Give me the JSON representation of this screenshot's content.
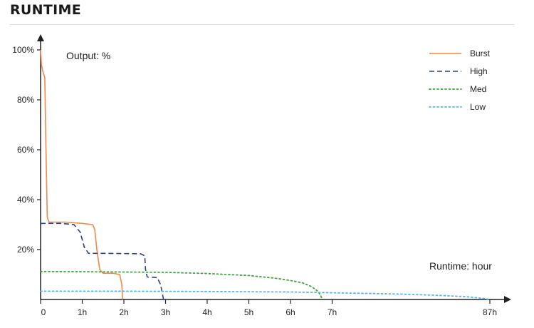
{
  "page_title": "RUNTIME",
  "chart_data": {
    "type": "line",
    "y_annotation": "Output: %",
    "x_annotation": "Runtime: hour",
    "y_ticks": [
      "20%",
      "40%",
      "60%",
      "80%",
      "100%"
    ],
    "y_tick_values": [
      20,
      40,
      60,
      80,
      100
    ],
    "x_ticks": [
      "0",
      "1h",
      "2h",
      "3h",
      "4h",
      "5h",
      "6h",
      "7h",
      "87h"
    ],
    "x_tick_values": [
      0,
      1,
      2,
      3,
      4,
      5,
      6,
      7,
      87
    ],
    "ylim": [
      0,
      100
    ],
    "legend_position": "top-right",
    "series": [
      {
        "name": "Burst",
        "color": "#ee8a4c",
        "dash": "solid",
        "points": [
          [
            0,
            100
          ],
          [
            0.02,
            94
          ],
          [
            0.06,
            91
          ],
          [
            0.1,
            89
          ],
          [
            0.13,
            60
          ],
          [
            0.16,
            33
          ],
          [
            0.2,
            31
          ],
          [
            0.6,
            31
          ],
          [
            1.0,
            30.5
          ],
          [
            1.25,
            30
          ],
          [
            1.3,
            28
          ],
          [
            1.35,
            20
          ],
          [
            1.42,
            12
          ],
          [
            1.5,
            10.5
          ],
          [
            1.75,
            10.5
          ],
          [
            1.9,
            10
          ],
          [
            1.95,
            6
          ],
          [
            1.97,
            0
          ]
        ]
      },
      {
        "name": "High",
        "color": "#2e3f82",
        "dash": "dashed",
        "points": [
          [
            0,
            30.5
          ],
          [
            0.5,
            30.5
          ],
          [
            0.8,
            30
          ],
          [
            0.95,
            27
          ],
          [
            1.05,
            21
          ],
          [
            1.15,
            18.5
          ],
          [
            1.5,
            18.5
          ],
          [
            2.4,
            18.3
          ],
          [
            2.5,
            17.5
          ],
          [
            2.52,
            12
          ],
          [
            2.56,
            9
          ],
          [
            2.8,
            8.8
          ],
          [
            2.88,
            6
          ],
          [
            2.94,
            1
          ],
          [
            2.95,
            0
          ]
        ]
      },
      {
        "name": "Med",
        "color": "#3fa241",
        "dash": "dotted",
        "points": [
          [
            0,
            11.2
          ],
          [
            1,
            11.1
          ],
          [
            2,
            11
          ],
          [
            3,
            10.9
          ],
          [
            4,
            10.4
          ],
          [
            5,
            9.6
          ],
          [
            5.6,
            8.6
          ],
          [
            6.0,
            7.6
          ],
          [
            6.3,
            6.6
          ],
          [
            6.5,
            5.2
          ],
          [
            6.65,
            3.4
          ],
          [
            6.72,
            1.8
          ],
          [
            6.76,
            0
          ]
        ]
      },
      {
        "name": "Low",
        "color": "#56b3e9",
        "dash": "dotted",
        "points": [
          [
            0,
            3.3
          ],
          [
            2,
            3.3
          ],
          [
            4,
            3.2
          ],
          [
            6,
            3
          ],
          [
            7,
            2.7
          ],
          [
            20,
            2.5
          ],
          [
            40,
            2.2
          ],
          [
            60,
            1.7
          ],
          [
            75,
            1.1
          ],
          [
            83,
            0.5
          ],
          [
            87,
            0
          ]
        ]
      }
    ]
  }
}
